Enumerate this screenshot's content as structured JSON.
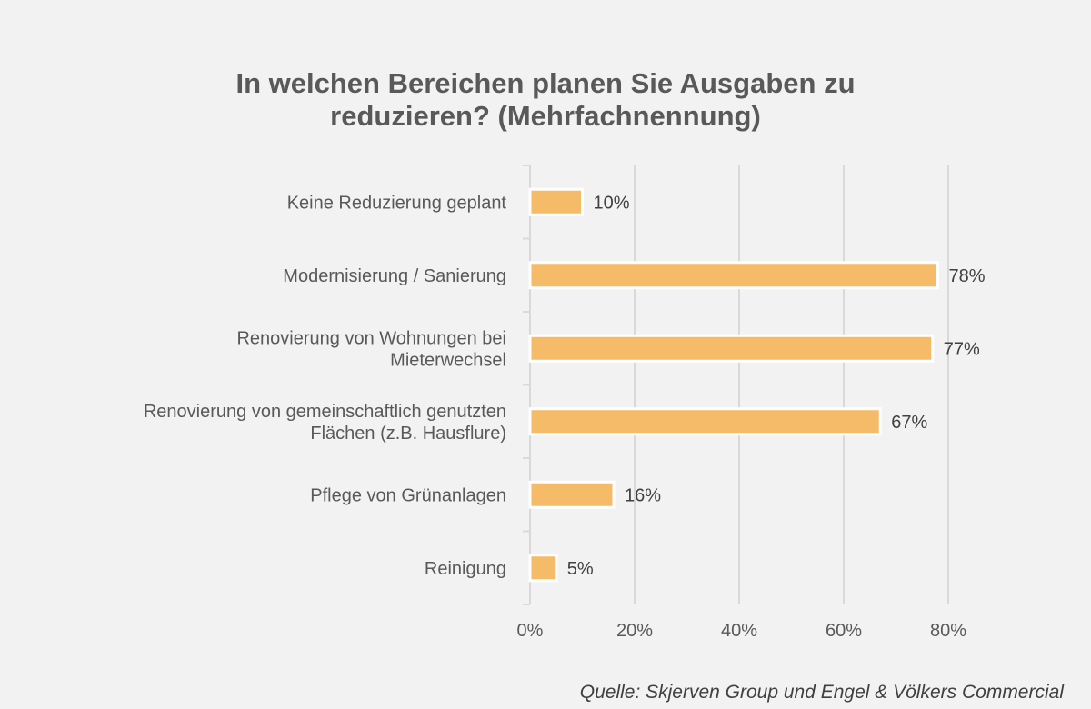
{
  "title_lines": [
    "In welchen Bereichen planen Sie Ausgaben zu",
    "reduzieren? (Mehrfachnennung)"
  ],
  "source": "Quelle: Skjerven Group und Engel & Völkers Commercial",
  "colors": {
    "bar": "#f6bb68",
    "bar_outline": "#ffffff",
    "grid": "#d9d9d9",
    "text": "#595959",
    "value_text": "#404040",
    "background": "#f2f2f2"
  },
  "chart_data": {
    "type": "bar",
    "orientation": "horizontal",
    "title": "In welchen Bereichen planen Sie Ausgaben zu reduzieren? (Mehrfachnennung)",
    "categories": [
      [
        "Keine Reduzierung geplant"
      ],
      [
        "Modernisierung / Sanierung"
      ],
      [
        "Renovierung von Wohnungen bei",
        "Mieterwechsel"
      ],
      [
        "Renovierung von gemeinschaftlich genutzten",
        "Flächen (z.B. Hausflure)"
      ],
      [
        "Pflege von Grünanlagen"
      ],
      [
        "Reinigung"
      ]
    ],
    "values": [
      10,
      78,
      77,
      67,
      16,
      5
    ],
    "value_labels": [
      "10%",
      "78%",
      "77%",
      "67%",
      "16%",
      "5%"
    ],
    "xlim": [
      0,
      80
    ],
    "xticks": [
      0,
      20,
      40,
      60,
      80
    ],
    "xtick_labels": [
      "0%",
      "20%",
      "40%",
      "60%",
      "80%"
    ],
    "xlabel": "",
    "ylabel": "",
    "grid": true,
    "legend": "none"
  }
}
